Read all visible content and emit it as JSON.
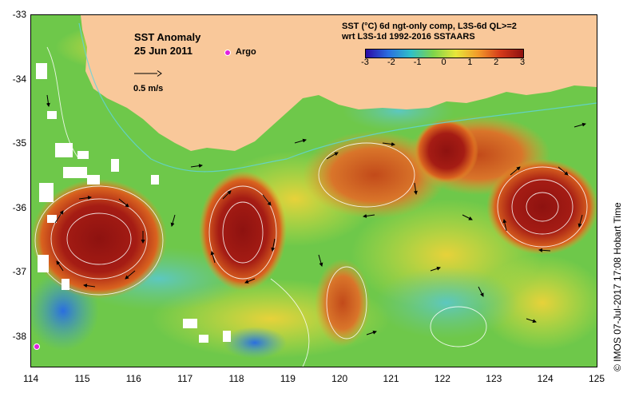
{
  "map": {
    "title": "SST Anomaly",
    "date": "25 Jun 2011",
    "argo_label": "Argo",
    "scale_label": "0.5 m/s",
    "colorbar_title_line1": "SST (°C) 6d ngt-only comp, L3S-6d QL>=2",
    "colorbar_title_line2": "wrt L3S-1d 1992-2016 SSTAARS",
    "colorbar_ticks": [
      "-3",
      "-2",
      "-1",
      "0",
      "1",
      "2",
      "3"
    ],
    "colorbar_colors": [
      "#2b0aa6",
      "#2a6ee0",
      "#2fc0c8",
      "#7fd44a",
      "#e7e63a",
      "#f29a2a",
      "#d4391a",
      "#8e1210"
    ],
    "x_ticks": [
      "114",
      "115",
      "116",
      "117",
      "118",
      "119",
      "120",
      "121",
      "122",
      "123",
      "124",
      "125"
    ],
    "y_ticks": [
      "-33",
      "-34",
      "-35",
      "-36",
      "-37",
      "-38"
    ],
    "credit": "IMOS 07-Jul-2017 17:08 Hobart Time",
    "copyright_symbol": "©",
    "land_color": "#f9c89a",
    "argo_color": "#e020e0"
  }
}
